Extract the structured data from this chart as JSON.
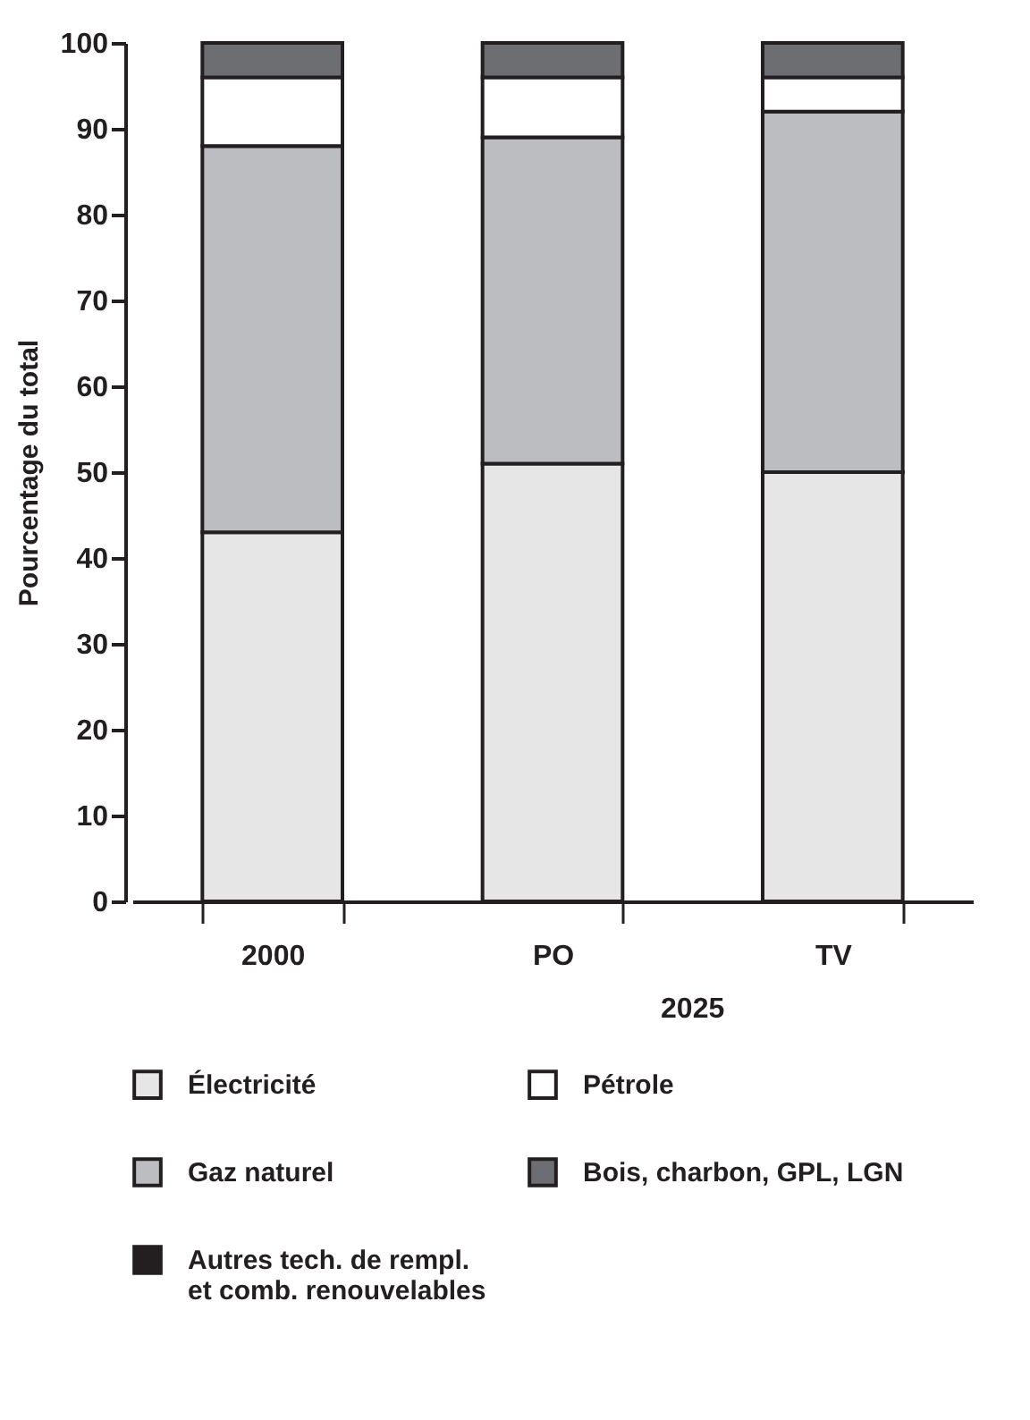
{
  "chart_data": {
    "type": "bar",
    "stacked": true,
    "ylabel": "Pourcentage du total",
    "categories": [
      "2000",
      "PO",
      "TV"
    ],
    "annotations": [
      "2025"
    ],
    "series": [
      {
        "name": "Électricité",
        "color": "#e6e6e6",
        "values": [
          43,
          51,
          50
        ]
      },
      {
        "name": "Gaz naturel",
        "color": "#bcbdc0",
        "values": [
          45,
          38,
          42
        ]
      },
      {
        "name": "Autres tech. de rempl. et comb. renouvelables",
        "color": "#231f20",
        "values": [
          0,
          0,
          0
        ]
      },
      {
        "name": "Pétrole",
        "color": "#ffffff",
        "values": [
          8,
          7,
          4
        ]
      },
      {
        "name": "Bois, charbon, GPL, LGN",
        "color": "#6d6e71",
        "values": [
          4,
          4,
          4
        ]
      }
    ],
    "ylim": [
      0,
      100
    ],
    "yticks": [
      0,
      10,
      20,
      30,
      40,
      50,
      60,
      70,
      80,
      90,
      100
    ],
    "grid": false,
    "legend": "bottom"
  }
}
